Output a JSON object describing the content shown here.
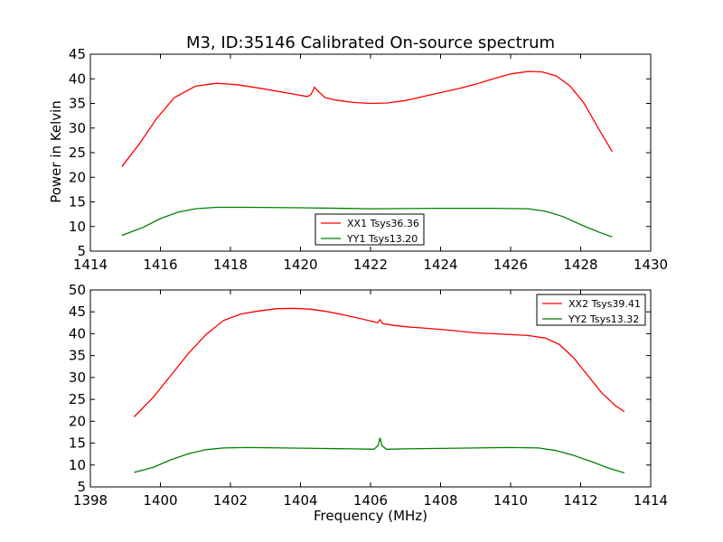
{
  "chart_data": [
    {
      "type": "line",
      "title": "M3, ID:35146 Calibrated On-source spectrum",
      "xlabel": "",
      "ylabel": "Power in Kelvin",
      "xlim": [
        1414,
        1430
      ],
      "ylim": [
        5,
        45
      ],
      "xticks": [
        "1414",
        "1416",
        "1418",
        "1420",
        "1422",
        "1424",
        "1426",
        "1428",
        "1430"
      ],
      "yticks": [
        "5",
        "10",
        "15",
        "20",
        "25",
        "30",
        "35",
        "40",
        "45"
      ],
      "grid": false,
      "legend_position": "lower-center",
      "series": [
        {
          "name": "XX1 Tsys36.36",
          "color": "#ff0000",
          "x": [
            1414.9,
            1415.4,
            1415.9,
            1416.4,
            1417.0,
            1417.6,
            1418.2,
            1419.0,
            1419.8,
            1420.2,
            1420.3,
            1420.4,
            1420.5,
            1420.7,
            1421.0,
            1421.5,
            1422.0,
            1422.5,
            1423.0,
            1423.5,
            1424.0,
            1424.5,
            1425.0,
            1425.5,
            1426.0,
            1426.5,
            1426.9,
            1427.3,
            1427.7,
            1428.1,
            1428.5,
            1428.9
          ],
          "y": [
            22.2,
            26.8,
            32.0,
            36.2,
            38.5,
            39.1,
            38.8,
            37.9,
            36.9,
            36.4,
            36.8,
            38.3,
            37.5,
            36.2,
            35.7,
            35.2,
            35.0,
            35.1,
            35.6,
            36.4,
            37.2,
            38.0,
            38.9,
            40.0,
            41.0,
            41.5,
            41.4,
            40.6,
            38.5,
            35.0,
            30.0,
            25.2
          ]
        },
        {
          "name": "YY1 Tsys13.20",
          "color": "#008000",
          "x": [
            1414.9,
            1415.5,
            1416.0,
            1416.5,
            1417.0,
            1417.6,
            1418.5,
            1420.0,
            1422.0,
            1424.0,
            1425.5,
            1426.5,
            1427.0,
            1427.5,
            1428.0,
            1428.5,
            1428.9
          ],
          "y": [
            8.2,
            9.8,
            11.6,
            12.9,
            13.6,
            13.9,
            13.9,
            13.8,
            13.6,
            13.7,
            13.7,
            13.6,
            13.1,
            12.0,
            10.4,
            8.9,
            7.9
          ]
        }
      ]
    },
    {
      "type": "line",
      "title": "",
      "xlabel": "Frequency (MHz)",
      "ylabel": "",
      "xlim": [
        1398,
        1414
      ],
      "ylim": [
        5,
        50
      ],
      "xticks": [
        "1398",
        "1400",
        "1402",
        "1404",
        "1406",
        "1408",
        "1410",
        "1412",
        "1414"
      ],
      "yticks": [
        "5",
        "10",
        "15",
        "20",
        "25",
        "30",
        "35",
        "40",
        "45",
        "50"
      ],
      "grid": false,
      "legend_position": "upper-right",
      "series": [
        {
          "name": "XX2 Tsys39.41",
          "color": "#ff0000",
          "x": [
            1399.25,
            1399.8,
            1400.3,
            1400.8,
            1401.3,
            1401.8,
            1402.3,
            1402.8,
            1403.3,
            1403.8,
            1404.3,
            1404.8,
            1405.3,
            1405.8,
            1406.2,
            1406.27,
            1406.35,
            1406.6,
            1407.0,
            1407.5,
            1408.0,
            1408.5,
            1409.0,
            1409.5,
            1410.0,
            1410.5,
            1411.0,
            1411.4,
            1411.8,
            1412.2,
            1412.6,
            1413.0,
            1413.25
          ],
          "y": [
            21.0,
            25.5,
            30.5,
            35.5,
            39.8,
            43.0,
            44.5,
            45.2,
            45.7,
            45.8,
            45.6,
            45.0,
            44.2,
            43.3,
            42.5,
            43.2,
            42.3,
            42.0,
            41.6,
            41.3,
            41.0,
            40.6,
            40.2,
            40.0,
            39.8,
            39.6,
            39.0,
            37.5,
            34.5,
            30.5,
            26.5,
            23.5,
            22.2
          ]
        },
        {
          "name": "YY2 Tsys13.32",
          "color": "#008000",
          "x": [
            1399.25,
            1399.8,
            1400.3,
            1400.8,
            1401.3,
            1401.8,
            1402.5,
            1403.5,
            1404.5,
            1405.5,
            1406.1,
            1406.22,
            1406.27,
            1406.33,
            1406.45,
            1407.0,
            1408.0,
            1409.0,
            1410.0,
            1410.8,
            1411.3,
            1411.8,
            1412.3,
            1412.8,
            1413.25
          ],
          "y": [
            8.3,
            9.5,
            11.2,
            12.6,
            13.5,
            13.9,
            14.0,
            13.9,
            13.8,
            13.7,
            13.6,
            14.5,
            16.2,
            14.4,
            13.6,
            13.7,
            13.8,
            13.9,
            14.0,
            13.9,
            13.3,
            12.2,
            10.8,
            9.3,
            8.2
          ]
        }
      ]
    }
  ]
}
